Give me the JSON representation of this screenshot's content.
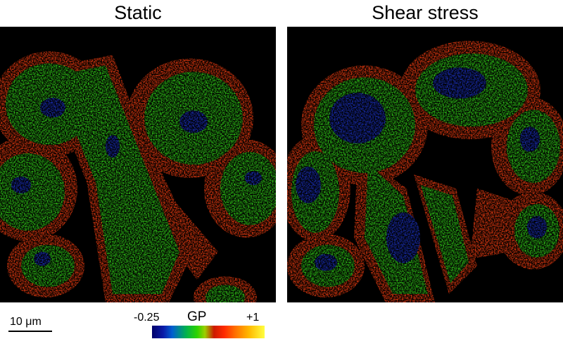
{
  "panels": {
    "left": {
      "title": "Static"
    },
    "right": {
      "title": "Shear stress"
    }
  },
  "scale_bar": {
    "label": "10 μm"
  },
  "colorbar": {
    "title": "GP",
    "min_label": "-0.25",
    "max_label": "+1",
    "colors": [
      "#00006a",
      "#005fd0",
      "#00b050",
      "#2bd300",
      "#cc1a00",
      "#ff2a00",
      "#ff7000",
      "#ffb800",
      "#ffff40"
    ]
  }
}
